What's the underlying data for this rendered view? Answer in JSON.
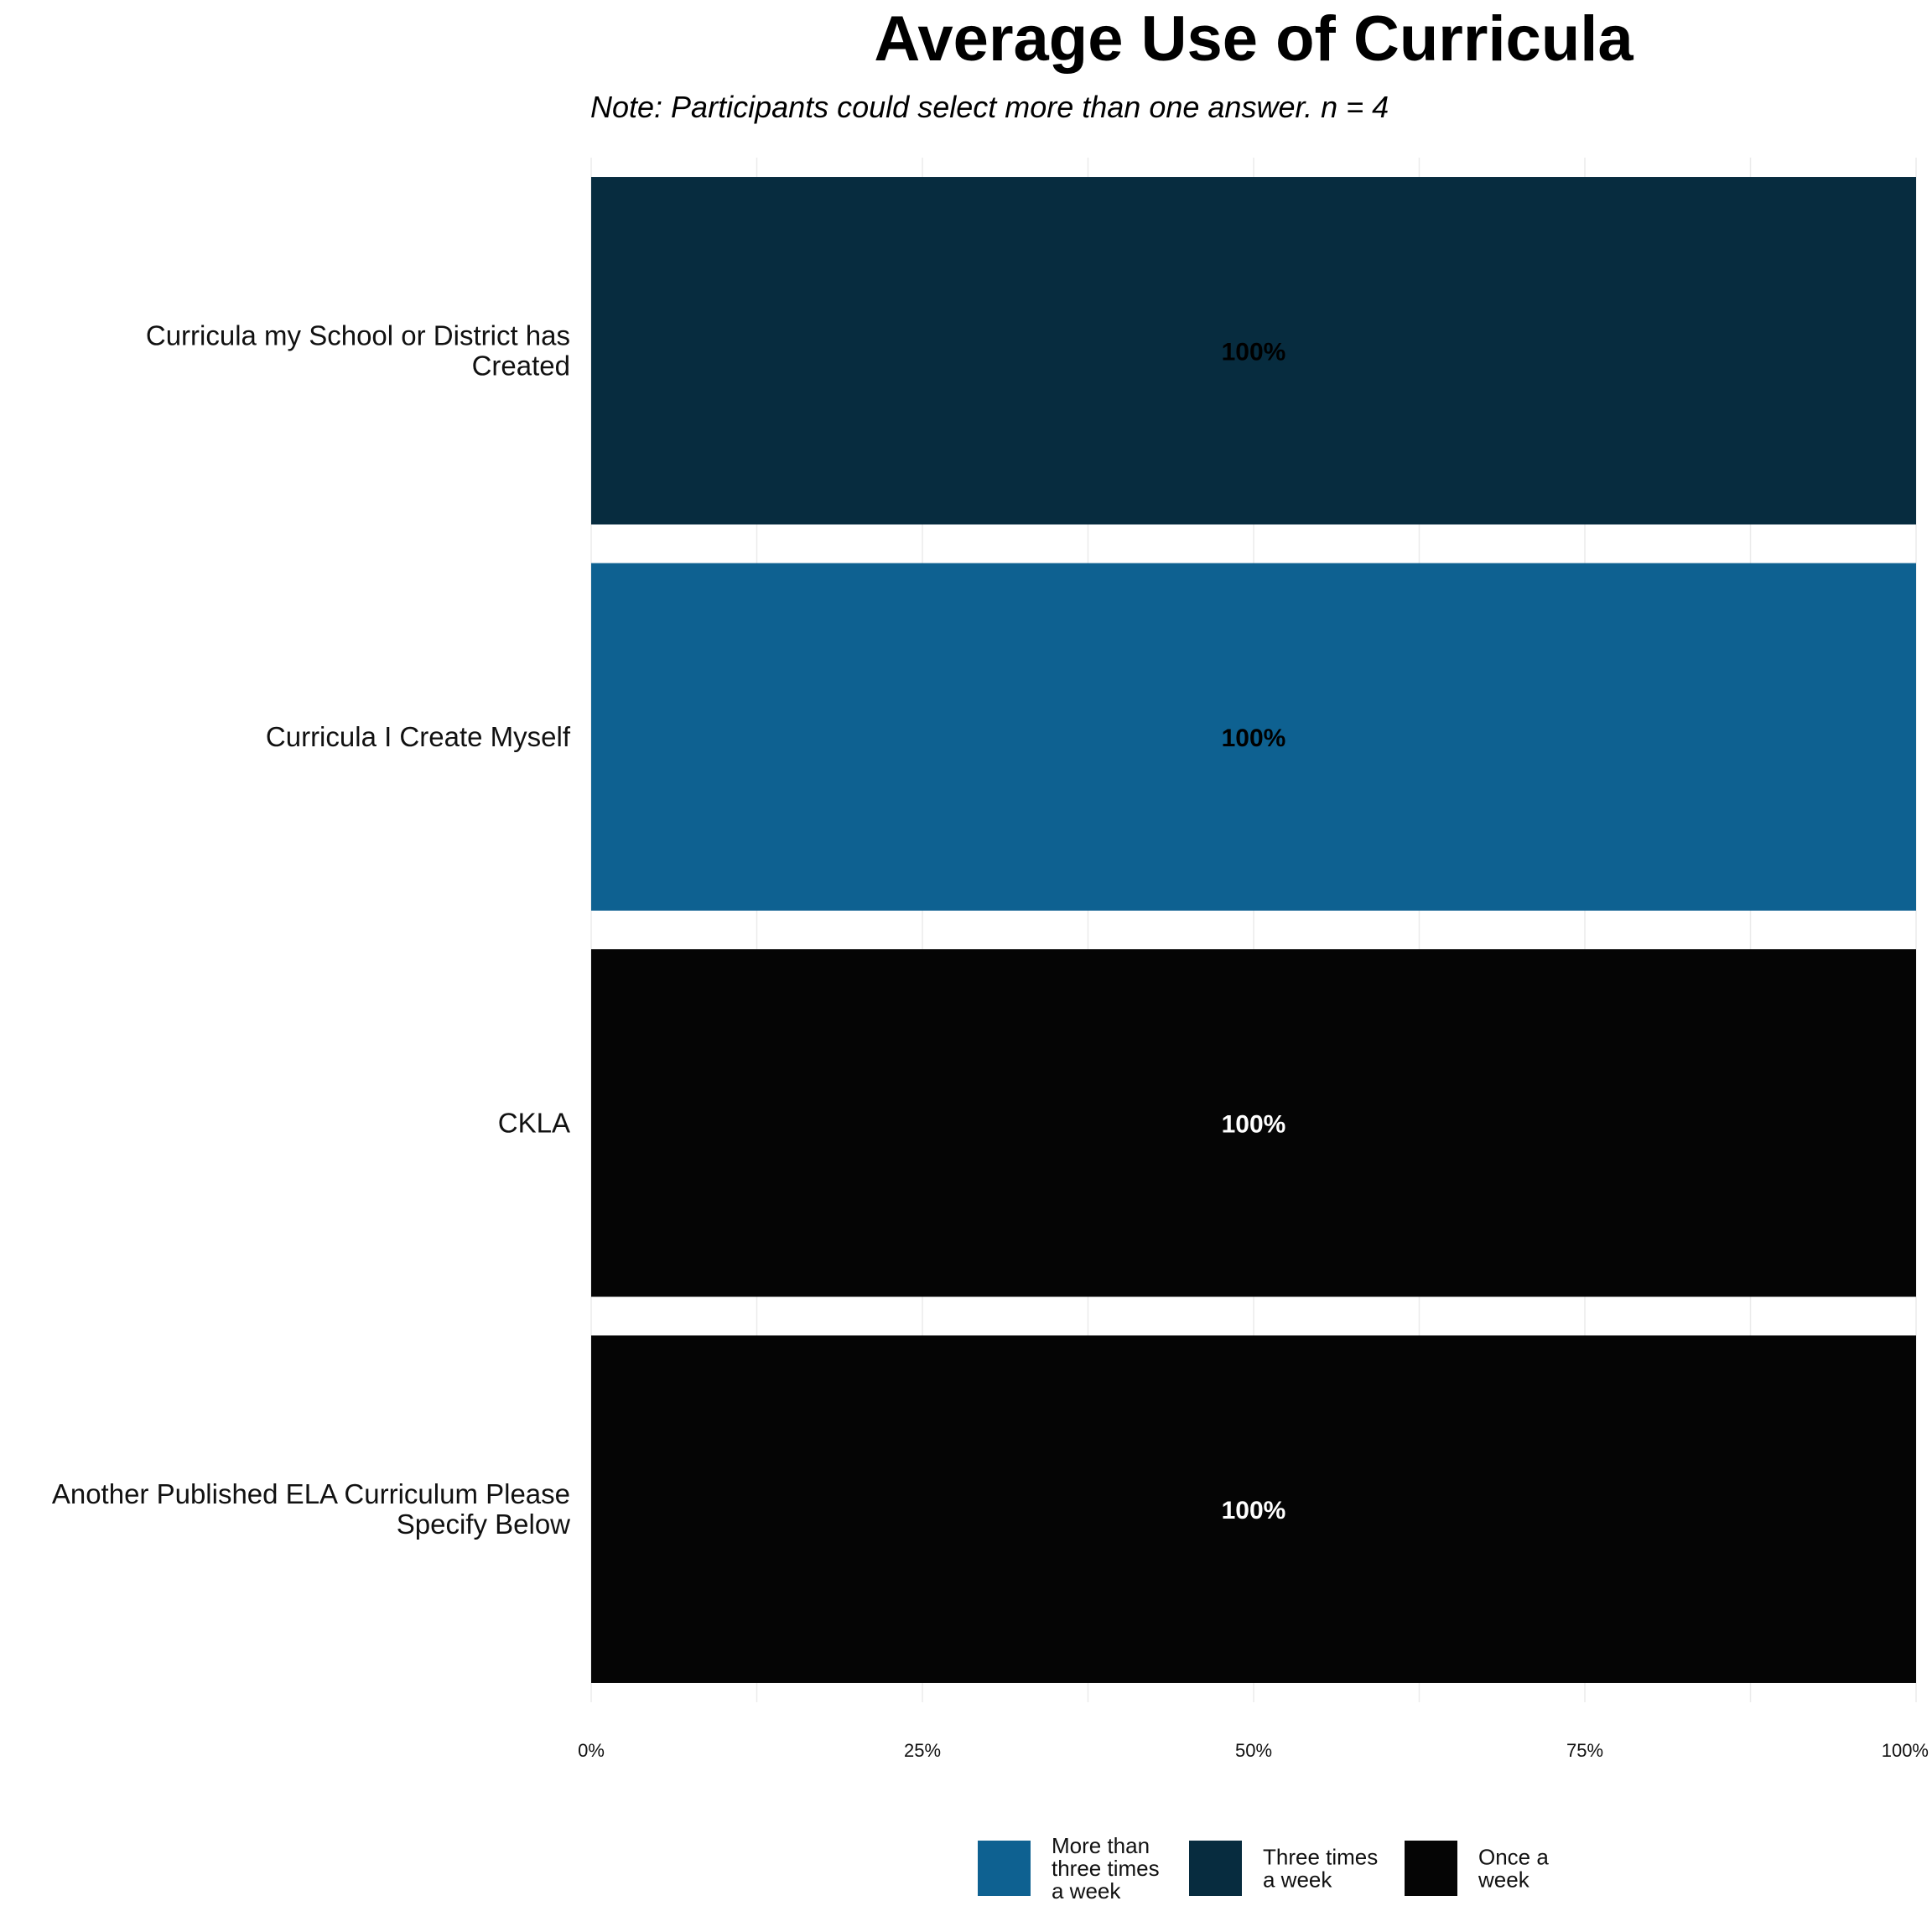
{
  "chart_data": {
    "type": "bar",
    "orientation": "horizontal",
    "title": "Average Use of Curricula",
    "subtitle": "Note: Participants could select more than one answer. n = 4",
    "xlabel": "",
    "ylabel": "",
    "xlim": [
      0,
      100
    ],
    "x_ticks": [
      "0%",
      "25%",
      "50%",
      "75%",
      "100%"
    ],
    "grid": true,
    "legend_position": "bottom",
    "categories": [
      [
        "Curricula my School or District has",
        "Created"
      ],
      [
        "Curricula I Create Myself"
      ],
      [
        "CKLA"
      ],
      [
        "Another Published ELA Curriculum Please",
        "Specify Below"
      ]
    ],
    "bars": [
      {
        "value": 100,
        "label": "100%",
        "series": 1
      },
      {
        "value": 100,
        "label": "100%",
        "series": 0
      },
      {
        "value": 100,
        "label": "100%",
        "series": 2
      },
      {
        "value": 100,
        "label": "100%",
        "series": 2
      }
    ],
    "series": [
      {
        "name": [
          "More than",
          "three times",
          "a week"
        ],
        "color": "#0e6191",
        "label_color": "#000000"
      },
      {
        "name": [
          "Three times",
          "a week"
        ],
        "color": "#072c3f",
        "label_color": "#000000"
      },
      {
        "name": [
          "Once a",
          "week"
        ],
        "color": "#050505",
        "label_color": "#ffffff"
      }
    ]
  }
}
